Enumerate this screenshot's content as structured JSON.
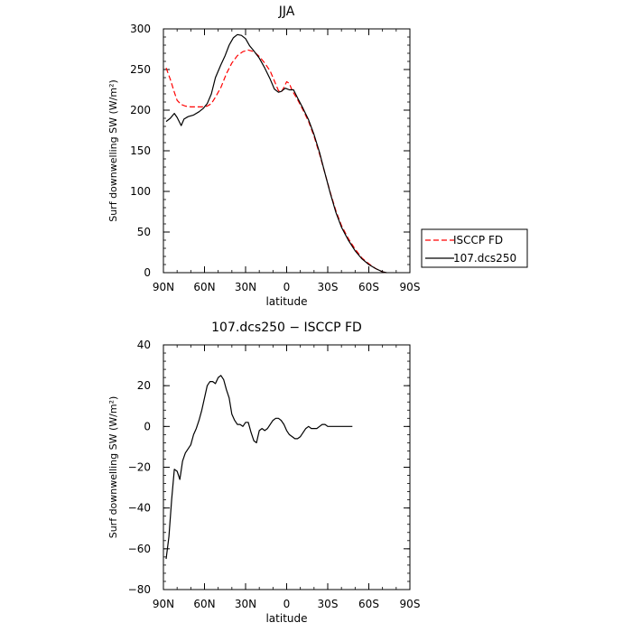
{
  "chart_data": [
    {
      "type": "line",
      "title": "JJA",
      "xlabel": "latitude",
      "ylabel": "Surf downwelling SW (W/m²)",
      "x_tick_labels": [
        "90N",
        "60N",
        "30N",
        "0",
        "30S",
        "60S",
        "90S"
      ],
      "x_ticks": [
        90,
        60,
        30,
        0,
        -30,
        -60,
        -90
      ],
      "xlim": [
        90,
        -90
      ],
      "y_ticks": [
        0,
        50,
        100,
        150,
        200,
        250,
        300
      ],
      "ylim": [
        0,
        300
      ],
      "legend_position": "right",
      "series": [
        {
          "name": "ISCCP FD",
          "color": "#ff0000",
          "dash": "dashed",
          "points": [
            [
              88,
              252
            ],
            [
              85,
              238
            ],
            [
              82,
              222
            ],
            [
              80,
              212
            ],
            [
              77,
              207
            ],
            [
              74,
              205
            ],
            [
              70,
              204
            ],
            [
              66,
              204
            ],
            [
              62,
              204
            ],
            [
              58,
              205
            ],
            [
              55,
              208
            ],
            [
              52,
              216
            ],
            [
              48,
              228
            ],
            [
              44,
              245
            ],
            [
              40,
              258
            ],
            [
              36,
              267
            ],
            [
              32,
              272
            ],
            [
              28,
              274
            ],
            [
              24,
              272
            ],
            [
              20,
              266
            ],
            [
              16,
              258
            ],
            [
              12,
              248
            ],
            [
              9,
              236
            ],
            [
              6,
              224
            ],
            [
              4,
              222
            ],
            [
              2,
              228
            ],
            [
              0,
              235
            ],
            [
              -2,
              233
            ],
            [
              -4,
              224
            ],
            [
              -8,
              213
            ],
            [
              -12,
              200
            ],
            [
              -16,
              186
            ],
            [
              -20,
              168
            ],
            [
              -24,
              146
            ],
            [
              -28,
              122
            ],
            [
              -32,
              98
            ],
            [
              -36,
              76
            ],
            [
              -40,
              58
            ],
            [
              -45,
              42
            ],
            [
              -50,
              29
            ],
            [
              -55,
              18
            ],
            [
              -60,
              11
            ],
            [
              -65,
              5
            ],
            [
              -70,
              1
            ],
            [
              -73,
              0
            ]
          ]
        },
        {
          "name": "107.dcs250",
          "color": "#000000",
          "dash": "solid",
          "points": [
            [
              88,
              186
            ],
            [
              85,
              190
            ],
            [
              82,
              196
            ],
            [
              80,
              191
            ],
            [
              77,
              181
            ],
            [
              75,
              189
            ],
            [
              72,
              192
            ],
            [
              68,
              194
            ],
            [
              64,
              198
            ],
            [
              61,
              202
            ],
            [
              58,
              208
            ],
            [
              55,
              220
            ],
            [
              52,
              240
            ],
            [
              48,
              256
            ],
            [
              45,
              267
            ],
            [
              42,
              280
            ],
            [
              39,
              289
            ],
            [
              36,
              293
            ],
            [
              33,
              292
            ],
            [
              30,
              288
            ],
            [
              27,
              279
            ],
            [
              24,
              273
            ],
            [
              20,
              264
            ],
            [
              16,
              252
            ],
            [
              12,
              238
            ],
            [
              9,
              226
            ],
            [
              6,
              222
            ],
            [
              4,
              223
            ],
            [
              1,
              227
            ],
            [
              -2,
              225
            ],
            [
              -5,
              225
            ],
            [
              -8,
              215
            ],
            [
              -12,
              202
            ],
            [
              -16,
              188
            ],
            [
              -20,
              170
            ],
            [
              -24,
              148
            ],
            [
              -28,
              122
            ],
            [
              -32,
              97
            ],
            [
              -36,
              74
            ],
            [
              -40,
              56
            ],
            [
              -45,
              40
            ],
            [
              -50,
              27
            ],
            [
              -55,
              17
            ],
            [
              -60,
              10
            ],
            [
              -65,
              5
            ],
            [
              -70,
              1
            ],
            [
              -73,
              0
            ]
          ]
        }
      ]
    },
    {
      "type": "line",
      "title": "107.dcs250 − ISCCP FD",
      "xlabel": "latitude",
      "ylabel": "Surf downwelling SW (W/m²)",
      "x_tick_labels": [
        "90N",
        "60N",
        "30N",
        "0",
        "30S",
        "60S",
        "90S"
      ],
      "x_ticks": [
        90,
        60,
        30,
        0,
        -30,
        -60,
        -90
      ],
      "xlim": [
        90,
        -90
      ],
      "y_ticks": [
        -80,
        -60,
        -40,
        -20,
        0,
        20,
        40
      ],
      "ylim": [
        -80,
        40
      ],
      "series": [
        {
          "color": "#000000",
          "dash": "solid",
          "points": [
            [
              88,
              -65
            ],
            [
              86,
              -54
            ],
            [
              84,
              -36
            ],
            [
              82,
              -21
            ],
            [
              80,
              -22
            ],
            [
              78,
              -26
            ],
            [
              76,
              -17
            ],
            [
              74,
              -13
            ],
            [
              72,
              -11
            ],
            [
              70,
              -9
            ],
            [
              68,
              -4
            ],
            [
              66,
              -1
            ],
            [
              64,
              3
            ],
            [
              62,
              8
            ],
            [
              60,
              14
            ],
            [
              58,
              20
            ],
            [
              56,
              22
            ],
            [
              54,
              22
            ],
            [
              52,
              21
            ],
            [
              50,
              24
            ],
            [
              48,
              25
            ],
            [
              46,
              23
            ],
            [
              44,
              18
            ],
            [
              42,
              14
            ],
            [
              40,
              6
            ],
            [
              38,
              3
            ],
            [
              36,
              1
            ],
            [
              34,
              1
            ],
            [
              32,
              0
            ],
            [
              30,
              2
            ],
            [
              28,
              2
            ],
            [
              26,
              -3
            ],
            [
              24,
              -7
            ],
            [
              22,
              -8
            ],
            [
              20,
              -2
            ],
            [
              18,
              -1
            ],
            [
              16,
              -2
            ],
            [
              14,
              -1
            ],
            [
              12,
              1
            ],
            [
              10,
              3
            ],
            [
              8,
              4
            ],
            [
              6,
              4
            ],
            [
              4,
              3
            ],
            [
              2,
              1
            ],
            [
              0,
              -2
            ],
            [
              -2,
              -4
            ],
            [
              -4,
              -5
            ],
            [
              -6,
              -6
            ],
            [
              -8,
              -6
            ],
            [
              -10,
              -5
            ],
            [
              -12,
              -3
            ],
            [
              -14,
              -1
            ],
            [
              -16,
              0
            ],
            [
              -18,
              -1
            ],
            [
              -20,
              -1
            ],
            [
              -22,
              -1
            ],
            [
              -24,
              0
            ],
            [
              -26,
              1
            ],
            [
              -28,
              1
            ],
            [
              -30,
              0
            ],
            [
              -33,
              0
            ],
            [
              -40,
              0
            ],
            [
              -48,
              0
            ]
          ]
        }
      ]
    }
  ]
}
